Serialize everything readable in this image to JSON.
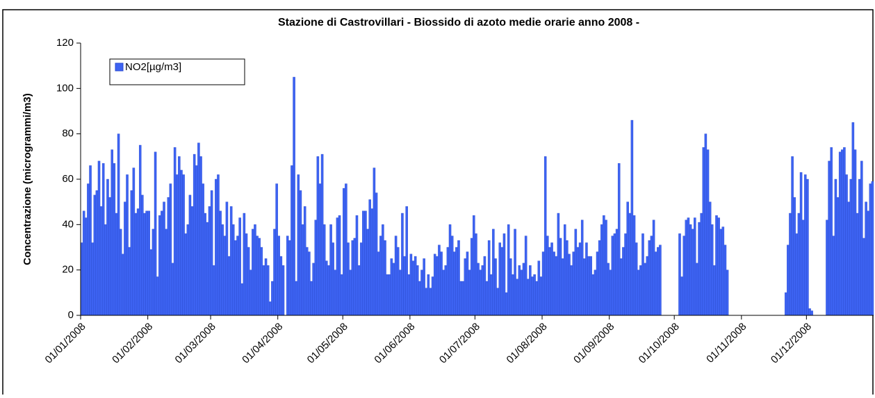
{
  "chart_data": {
    "type": "bar",
    "title": "Stazione di Castrovillari - Biossido di azoto medie orarie anno 2008 -",
    "y_label": "Concentrazione (microgrammi/m3)",
    "legend": "top-left",
    "ylim": [
      0,
      120
    ],
    "yticks": [
      0,
      20,
      40,
      60,
      80,
      100,
      120
    ],
    "categories": [
      "01/01/2008",
      null,
      null,
      null,
      null,
      null,
      null,
      null,
      null,
      null,
      null,
      null,
      null,
      null,
      null,
      null,
      null,
      null,
      null,
      null,
      null,
      null,
      null,
      null,
      null,
      null,
      null,
      null,
      null,
      null,
      null,
      "01/02/2008",
      null,
      null,
      null,
      null,
      null,
      null,
      null,
      null,
      null,
      null,
      null,
      null,
      null,
      null,
      null,
      null,
      null,
      null,
      null,
      null,
      null,
      null,
      null,
      null,
      null,
      null,
      null,
      null,
      "01/03/2008",
      null,
      null,
      null,
      null,
      null,
      null,
      null,
      null,
      null,
      null,
      null,
      null,
      null,
      null,
      null,
      null,
      null,
      null,
      null,
      null,
      null,
      null,
      null,
      null,
      null,
      null,
      null,
      null,
      null,
      null,
      "01/04/2008",
      null,
      null,
      null,
      null,
      null,
      null,
      null,
      null,
      null,
      null,
      null,
      null,
      null,
      null,
      null,
      null,
      null,
      null,
      null,
      null,
      null,
      null,
      null,
      null,
      null,
      null,
      null,
      null,
      null,
      "01/05/2008",
      null,
      null,
      null,
      null,
      null,
      null,
      null,
      null,
      null,
      null,
      null,
      null,
      null,
      null,
      null,
      null,
      null,
      null,
      null,
      null,
      null,
      null,
      null,
      null,
      null,
      null,
      null,
      null,
      null,
      null,
      "01/06/2008",
      null,
      null,
      null,
      null,
      null,
      null,
      null,
      null,
      null,
      null,
      null,
      null,
      null,
      null,
      null,
      null,
      null,
      null,
      null,
      null,
      null,
      null,
      null,
      null,
      null,
      null,
      null,
      null,
      null,
      "01/07/2008",
      null,
      null,
      null,
      null,
      null,
      null,
      null,
      null,
      null,
      null,
      null,
      null,
      null,
      null,
      null,
      null,
      null,
      null,
      null,
      null,
      null,
      null,
      null,
      null,
      null,
      null,
      null,
      null,
      null,
      null,
      "01/08/2008",
      null,
      null,
      null,
      null,
      null,
      null,
      null,
      null,
      null,
      null,
      null,
      null,
      null,
      null,
      null,
      null,
      null,
      null,
      null,
      null,
      null,
      null,
      null,
      null,
      null,
      null,
      null,
      null,
      null,
      null,
      "01/09/2008",
      null,
      null,
      null,
      null,
      null,
      null,
      null,
      null,
      null,
      null,
      null,
      null,
      null,
      null,
      null,
      null,
      null,
      null,
      null,
      null,
      null,
      null,
      null,
      null,
      null,
      null,
      null,
      null,
      null,
      "01/10/2008",
      null,
      null,
      null,
      null,
      null,
      null,
      null,
      null,
      null,
      null,
      null,
      null,
      null,
      null,
      null,
      null,
      null,
      null,
      null,
      null,
      null,
      null,
      null,
      null,
      null,
      null,
      null,
      null,
      null,
      null,
      "01/11/2008",
      null,
      null,
      null,
      null,
      null,
      null,
      null,
      null,
      null,
      null,
      null,
      null,
      null,
      null,
      null,
      null,
      null,
      null,
      null,
      null,
      null,
      null,
      null,
      null,
      null,
      null,
      null,
      null,
      null,
      "01/12/2008",
      null,
      null,
      null,
      null,
      null,
      null,
      null,
      null,
      null,
      null,
      null,
      null,
      null,
      null,
      null,
      null,
      null,
      null,
      null,
      null,
      null,
      null,
      null,
      null,
      null,
      null,
      null,
      null,
      null,
      null
    ],
    "series": [
      {
        "name": "NO2[µg/m3]",
        "color": "#3d63f2",
        "values": [
          32,
          46,
          43,
          58,
          66,
          32,
          53,
          55,
          68,
          48,
          67,
          40,
          60,
          52,
          73,
          67,
          45,
          80,
          38,
          27,
          50,
          62,
          30,
          55,
          65,
          45,
          47,
          75,
          53,
          45,
          46,
          46,
          29,
          38,
          72,
          17,
          44,
          46,
          50,
          38,
          52,
          58,
          23,
          74,
          62,
          70,
          64,
          62,
          36,
          40,
          53,
          48,
          71,
          66,
          76,
          70,
          58,
          45,
          41,
          48,
          55,
          22,
          60,
          62,
          46,
          40,
          35,
          50,
          26,
          48,
          40,
          33,
          35,
          43,
          14,
          45,
          36,
          30,
          20,
          38,
          40,
          35,
          34,
          30,
          22,
          25,
          22,
          6,
          15,
          38,
          58,
          35,
          26,
          22,
          null,
          35,
          33,
          66,
          105,
          15,
          62,
          55,
          40,
          48,
          30,
          28,
          15,
          23,
          42,
          70,
          58,
          71,
          40,
          24,
          22,
          40,
          32,
          20,
          43,
          44,
          18,
          56,
          58,
          32,
          20,
          33,
          34,
          44,
          22,
          32,
          46,
          46,
          38,
          51,
          47,
          65,
          54,
          28,
          35,
          40,
          33,
          18,
          18,
          25,
          23,
          35,
          30,
          20,
          45,
          26,
          48,
          18,
          27,
          24,
          26,
          22,
          15,
          20,
          25,
          12,
          18,
          12,
          17,
          27,
          26,
          31,
          28,
          20,
          22,
          30,
          40,
          35,
          28,
          30,
          33,
          15,
          15,
          25,
          28,
          20,
          34,
          44,
          36,
          23,
          20,
          22,
          26,
          15,
          33,
          18,
          38,
          25,
          12,
          32,
          30,
          36,
          10,
          40,
          25,
          18,
          38,
          16,
          22,
          20,
          23,
          35,
          16,
          22,
          17,
          18,
          15,
          24,
          17,
          28,
          70,
          35,
          30,
          32,
          28,
          26,
          45,
          34,
          25,
          40,
          33,
          27,
          22,
          28,
          38,
          30,
          32,
          42,
          25,
          32,
          26,
          26,
          18,
          20,
          28,
          33,
          40,
          44,
          42,
          23,
          20,
          35,
          36,
          38,
          67,
          25,
          30,
          36,
          50,
          45,
          86,
          44,
          32,
          20,
          22,
          36,
          23,
          26,
          33,
          35,
          42,
          28,
          30,
          31,
          null,
          null,
          null,
          null,
          null,
          null,
          null,
          null,
          36,
          17,
          35,
          42,
          43,
          40,
          38,
          43,
          23,
          41,
          45,
          74,
          80,
          73,
          50,
          40,
          22,
          44,
          43,
          38,
          39,
          31,
          20,
          null,
          null,
          null,
          null,
          null,
          null,
          null,
          null,
          null,
          null,
          null,
          null,
          null,
          null,
          null,
          null,
          null,
          null,
          null,
          null,
          null,
          null,
          null,
          null,
          null,
          null,
          10,
          31,
          45,
          70,
          52,
          36,
          45,
          63,
          42,
          62,
          60,
          3,
          2,
          null,
          null,
          null,
          null,
          null,
          null,
          42,
          68,
          74,
          35,
          60,
          52,
          72,
          73,
          74,
          62,
          50,
          60,
          85,
          73,
          45,
          60,
          68,
          34,
          50,
          46,
          58,
          59
        ]
      }
    ]
  }
}
